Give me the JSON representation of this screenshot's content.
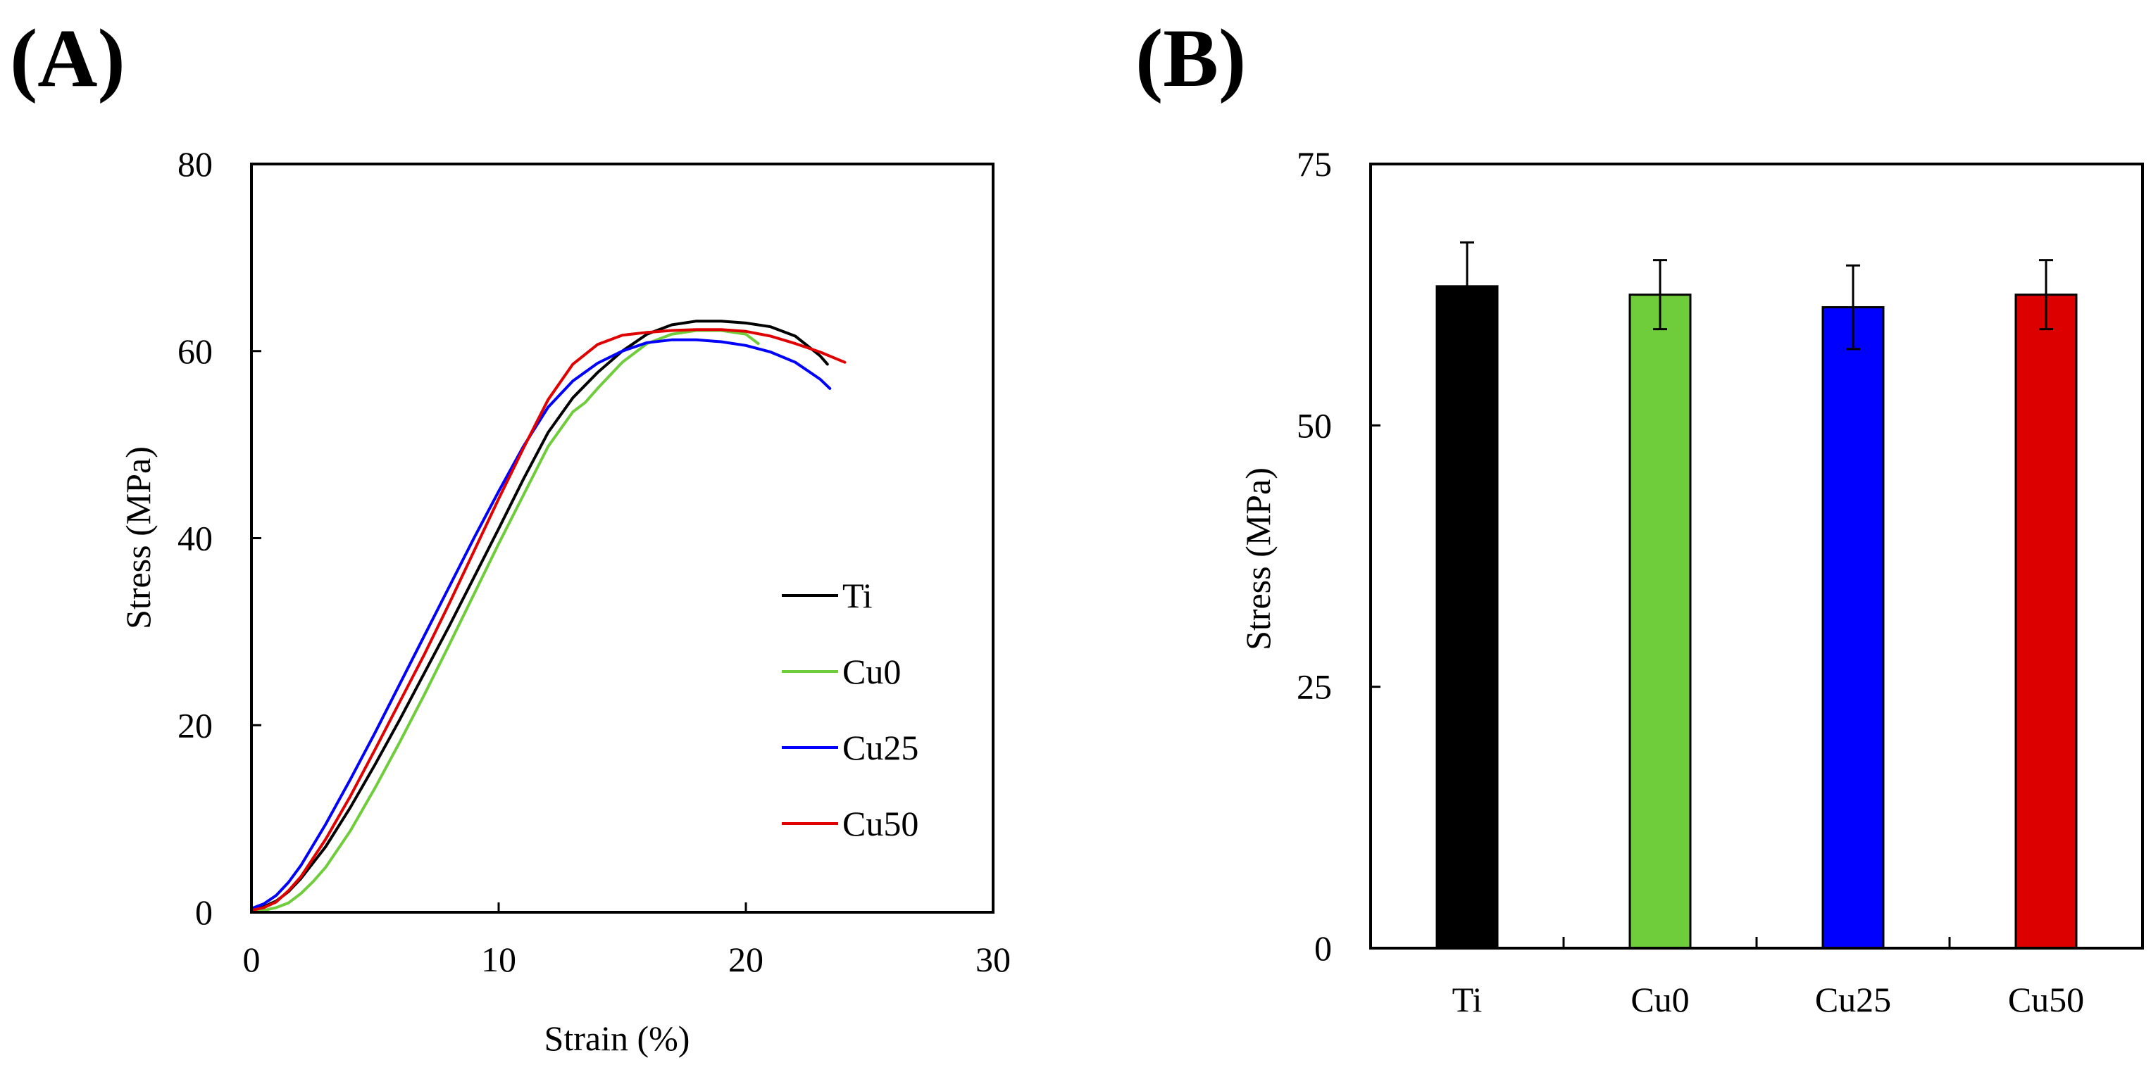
{
  "panels": [
    {
      "label": "(A)",
      "chart_data": {
        "type": "line",
        "title": "",
        "xlabel": "Strain (%)",
        "ylabel": "Stress (MPa)",
        "xlim": [
          0,
          30
        ],
        "ylim": [
          0,
          80
        ],
        "xticks": [
          0,
          10,
          20,
          30
        ],
        "yticks": [
          0,
          20,
          40,
          60,
          80
        ],
        "legend_position": "lower-right",
        "series": [
          {
            "name": "Ti",
            "color": "#000000",
            "x": [
              0,
              0.5,
              1,
              1.5,
              2,
              3,
              4,
              5,
              6,
              7,
              8,
              9,
              10,
              11,
              12,
              13,
              14,
              15,
              16,
              17,
              18,
              19,
              20,
              21,
              22,
              23,
              23.3
            ],
            "y": [
              0.3,
              0.6,
              1.2,
              2.2,
              3.6,
              7.0,
              11.2,
              15.8,
              20.6,
              25.6,
              30.6,
              35.8,
              41.0,
              46.3,
              51.3,
              55.0,
              57.7,
              60.0,
              61.8,
              62.8,
              63.2,
              63.2,
              63.0,
              62.6,
              61.6,
              59.5,
              58.6
            ]
          },
          {
            "name": "Cu0",
            "color": "#6fcc3a",
            "x": [
              0,
              0.5,
              1,
              1.5,
              2,
              2.5,
              3,
              4,
              5,
              6,
              7,
              8,
              9,
              10,
              11,
              12,
              13,
              13.5,
              14,
              15,
              16,
              17,
              18,
              19,
              20,
              20.5
            ],
            "y": [
              0.1,
              0.2,
              0.5,
              1.0,
              2.0,
              3.3,
              4.8,
              8.7,
              13.3,
              18.2,
              23.3,
              28.6,
              34.0,
              39.4,
              44.6,
              49.8,
              53.5,
              54.5,
              56.0,
              58.8,
              60.8,
              61.8,
              62.2,
              62.2,
              61.8,
              60.8
            ]
          },
          {
            "name": "Cu25",
            "color": "#0000ff",
            "x": [
              0,
              0.5,
              1,
              1.5,
              2,
              3,
              4,
              5,
              6,
              7,
              8,
              9,
              10,
              11,
              12,
              13,
              14,
              15,
              16,
              17,
              18,
              19,
              20,
              21,
              22,
              23,
              23.4
            ],
            "y": [
              0.4,
              0.9,
              1.8,
              3.2,
              5.0,
              9.4,
              14.2,
              19.2,
              24.4,
              29.6,
              34.8,
              40.0,
              45.0,
              49.8,
              54.0,
              56.8,
              58.7,
              60.0,
              60.9,
              61.2,
              61.2,
              61.0,
              60.6,
              59.9,
              58.8,
              57.0,
              56.0
            ]
          },
          {
            "name": "Cu50",
            "color": "#e00000",
            "x": [
              0,
              0.5,
              1,
              1.5,
              2,
              3,
              4,
              5,
              6,
              7,
              8,
              9,
              10,
              11,
              12,
              13,
              14,
              15,
              16,
              17,
              18,
              19,
              20,
              21,
              22,
              23,
              24
            ],
            "y": [
              0.2,
              0.5,
              1.1,
              2.3,
              3.8,
              7.8,
              12.4,
              17.4,
              22.5,
              27.6,
              33.0,
              38.6,
              44.2,
              49.6,
              54.8,
              58.6,
              60.7,
              61.7,
              62.0,
              62.2,
              62.3,
              62.3,
              62.1,
              61.6,
              60.8,
              59.9,
              58.8
            ]
          }
        ]
      }
    },
    {
      "label": "(B)",
      "chart_data": {
        "type": "bar",
        "title": "",
        "xlabel": "",
        "ylabel": "Stress (MPa)",
        "ylim": [
          0,
          75
        ],
        "yticks": [
          0,
          25,
          50,
          75
        ],
        "categories": [
          "Ti",
          "Cu0",
          "Cu25",
          "Cu50"
        ],
        "values": [
          63.3,
          62.5,
          61.3,
          62.5
        ],
        "errors": [
          4.2,
          3.3,
          4.0,
          3.3
        ],
        "colors": [
          "#000000",
          "#6fcc3a",
          "#0000ff",
          "#dd0000"
        ]
      }
    }
  ]
}
